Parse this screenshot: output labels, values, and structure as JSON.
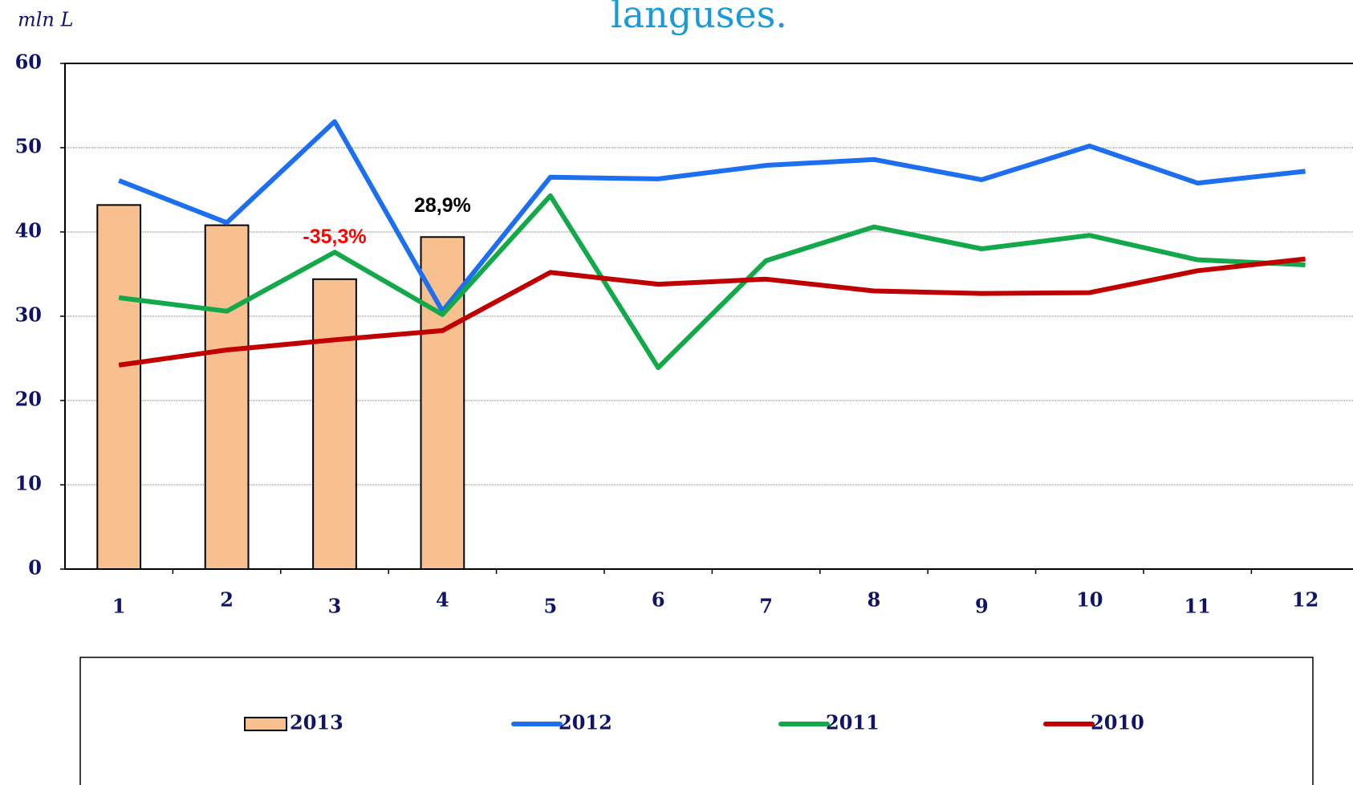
{
  "chart_data": {
    "type": "bar",
    "title": "languses.",
    "y_axis_label": "mln L",
    "categories": [
      "1",
      "2",
      "3",
      "4",
      "5",
      "6",
      "7",
      "8",
      "9",
      "10",
      "11",
      "12"
    ],
    "series": [
      {
        "name": "2013",
        "type": "bar",
        "color": "#f9c08f",
        "values": [
          43.2,
          40.8,
          34.4,
          39.4,
          null,
          null,
          null,
          null,
          null,
          null,
          null,
          null
        ]
      },
      {
        "name": "2012",
        "type": "line",
        "color": "#1e6ff0",
        "values": [
          46.1,
          41.1,
          53.1,
          30.6,
          46.5,
          46.3,
          47.9,
          48.6,
          46.2,
          50.2,
          45.8,
          47.2
        ]
      },
      {
        "name": "2011",
        "type": "line",
        "color": "#13a84a",
        "values": [
          32.2,
          30.6,
          37.6,
          30.2,
          44.3,
          23.9,
          36.6,
          40.6,
          38.0,
          39.6,
          36.7,
          36.1
        ]
      },
      {
        "name": "2010",
        "type": "line",
        "color": "#c00000",
        "values": [
          24.2,
          26.0,
          27.2,
          28.3,
          35.2,
          33.8,
          34.4,
          33.0,
          32.7,
          32.8,
          35.4,
          36.8
        ]
      }
    ],
    "annotations": [
      {
        "text": "-35,3%",
        "color": "#ff0000"
      },
      {
        "text": "28,9%",
        "color": "#000000"
      }
    ],
    "ylim": [
      0,
      60
    ],
    "yticks": [
      0,
      10,
      20,
      30,
      40,
      50,
      60
    ],
    "grid": true,
    "legend": "bottom"
  }
}
